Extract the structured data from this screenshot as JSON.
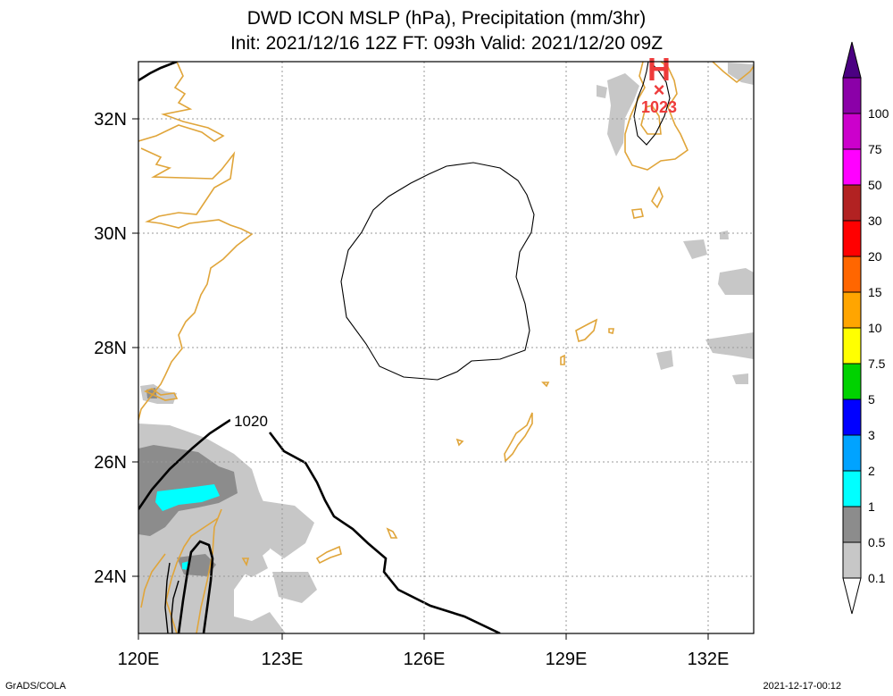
{
  "title": {
    "line1": "DWD ICON MSLP (hPa), Precipitation (mm/3hr)",
    "line2": "Init: 2021/12/16 12Z  FT: 093h  Valid: 2021/12/20 09Z"
  },
  "map": {
    "lon_range": [
      120,
      133
    ],
    "lat_range": [
      23,
      33
    ],
    "lon_ticks": [
      {
        "value": 120,
        "label": "120E"
      },
      {
        "value": 123,
        "label": "123E"
      },
      {
        "value": 126,
        "label": "126E"
      },
      {
        "value": 129,
        "label": "129E"
      },
      {
        "value": 132,
        "label": "132E"
      }
    ],
    "lat_ticks": [
      {
        "value": 24,
        "label": "24N"
      },
      {
        "value": 26,
        "label": "26N"
      },
      {
        "value": 28,
        "label": "28N"
      },
      {
        "value": 30,
        "label": "30N"
      },
      {
        "value": 32,
        "label": "32N"
      }
    ],
    "grid": "dotted",
    "high_center": {
      "symbol": "H",
      "marker": "×",
      "value": "1023",
      "lon": 131.0,
      "lat": 32.5
    },
    "isobar_labels": [
      {
        "text": "1020",
        "lon": 122.4,
        "lat": 26.7
      }
    ],
    "colors": {
      "coast": "#e0a53a",
      "isobar": "#000000",
      "high": "#ee3b3b",
      "grid": "#9a9a9a"
    }
  },
  "colorbar": {
    "levels": [
      {
        "label": "0.1",
        "color": "#c7c7c7"
      },
      {
        "label": "0.5",
        "color": "#8c8c8c"
      },
      {
        "label": "1",
        "color": "#00ffff"
      },
      {
        "label": "2",
        "color": "#00a3ff"
      },
      {
        "label": "3",
        "color": "#0000ff"
      },
      {
        "label": "5",
        "color": "#00d200"
      },
      {
        "label": "7.5",
        "color": "#ffff00"
      },
      {
        "label": "10",
        "color": "#ffa500"
      },
      {
        "label": "15",
        "color": "#ff6600"
      },
      {
        "label": "20",
        "color": "#ff0000"
      },
      {
        "label": "30",
        "color": "#b22222"
      },
      {
        "label": "50",
        "color": "#ff00ff"
      },
      {
        "label": "75",
        "color": "#cc00cc"
      },
      {
        "label": "100",
        "color": "#8b00a8"
      }
    ],
    "under_color": "#ffffff",
    "over_color": "#4b0082"
  },
  "footer": {
    "left": "GrADS/COLA",
    "right": "2021-12-17-00:12"
  }
}
